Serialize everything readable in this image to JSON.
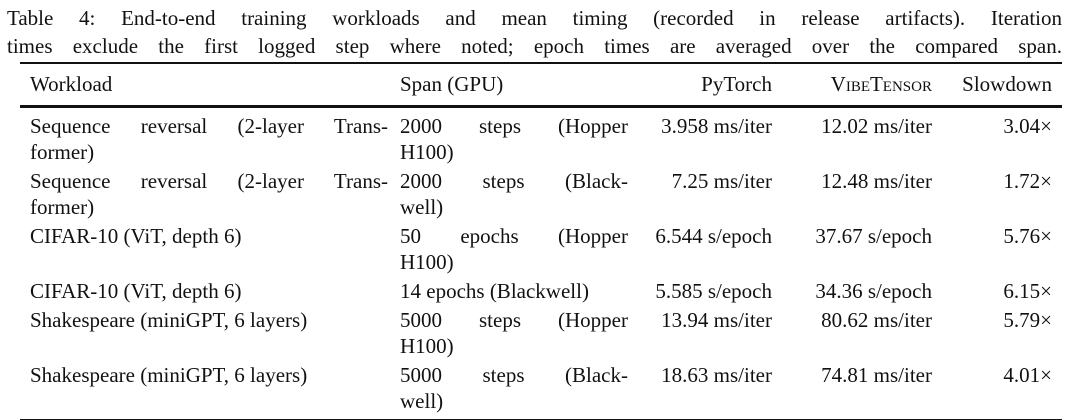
{
  "caption": {
    "lines": [
      "Table 4: End-to-end training workloads and mean timing (recorded in release artifacts). Iteration",
      "times exclude the first logged step where noted; epoch times are averaged over the compared span."
    ]
  },
  "table": {
    "columns": [
      "Workload",
      "Span (GPU)",
      "PyTorch",
      "VibeTensor",
      "Slowdown"
    ],
    "units": {
      "iteration": "ms/iter",
      "epoch": "s/epoch"
    },
    "rows": [
      {
        "workload": "Sequence reversal (2-layer Transformer)",
        "workload_lines": [
          "Sequence reversal (2-layer Trans-",
          "former)"
        ],
        "span": "2000 steps (Hopper H100)",
        "span_lines": [
          "2000 steps (Hopper",
          "H100)"
        ],
        "pytorch": "3.958 ms/iter",
        "vibetensor": "12.02 ms/iter",
        "slowdown": "3.04×"
      },
      {
        "workload": "Sequence reversal (2-layer Transformer)",
        "workload_lines": [
          "Sequence reversal (2-layer Trans-",
          "former)"
        ],
        "span": "2000 steps (Blackwell)",
        "span_lines": [
          "2000 steps (Black-",
          "well)"
        ],
        "pytorch": "7.25 ms/iter",
        "vibetensor": "12.48 ms/iter",
        "slowdown": "1.72×"
      },
      {
        "workload": "CIFAR-10 (ViT, depth 6)",
        "workload_lines": [
          "CIFAR-10 (ViT, depth 6)"
        ],
        "span": "50 epochs (Hopper H100)",
        "span_lines": [
          "50 epochs (Hopper",
          "H100)"
        ],
        "pytorch": "6.544 s/epoch",
        "vibetensor": "37.67 s/epoch",
        "slowdown": "5.76×"
      },
      {
        "workload": "CIFAR-10 (ViT, depth 6)",
        "workload_lines": [
          "CIFAR-10 (ViT, depth 6)"
        ],
        "span": "14 epochs (Blackwell)",
        "span_lines": [
          "14 epochs (Blackwell)"
        ],
        "pytorch": "5.585 s/epoch",
        "vibetensor": "34.36 s/epoch",
        "slowdown": "6.15×"
      },
      {
        "workload": "Shakespeare (miniGPT, 6 layers)",
        "workload_lines": [
          "Shakespeare (miniGPT, 6 layers)"
        ],
        "span": "5000 steps (Hopper H100)",
        "span_lines": [
          "5000 steps (Hopper",
          "H100)"
        ],
        "pytorch": "13.94 ms/iter",
        "vibetensor": "80.62 ms/iter",
        "slowdown": "5.79×"
      },
      {
        "workload": "Shakespeare (miniGPT, 6 layers)",
        "workload_lines": [
          "Shakespeare (miniGPT, 6 layers)"
        ],
        "span": "5000 steps (Blackwell)",
        "span_lines": [
          "5000 steps (Black-",
          "well)"
        ],
        "pytorch": "18.63 ms/iter",
        "vibetensor": "74.81 ms/iter",
        "slowdown": "4.01×"
      }
    ]
  }
}
